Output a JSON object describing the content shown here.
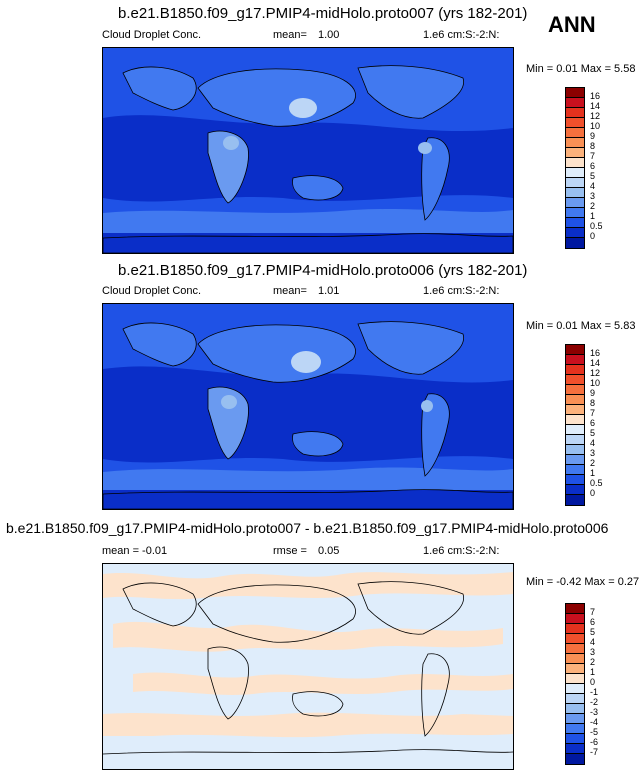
{
  "corner_label": "ANN",
  "panels": [
    {
      "title": "b.e21.B1850.f09_g17.PMIP4-midHolo.proto007 (yrs 182-201)",
      "left_label": "Cloud Droplet Conc.",
      "mean_label": "mean=",
      "mean_value": "1.00",
      "units": "1.e6 cm:S:-2:N:",
      "minmax": "Min =  0.01  Max =  5.58",
      "colorbar_labels": [
        "16",
        "14",
        "12",
        "10",
        "9",
        "8",
        "7",
        "6",
        "5",
        "4",
        "3",
        "2",
        "1",
        "0.5",
        "0"
      ],
      "colorbar_colors": [
        "#8b0000",
        "#c8101e",
        "#e4321e",
        "#f0502c",
        "#f5703e",
        "#f99055",
        "#fcb27c",
        "#fde3cc",
        "#dfedfb",
        "#bcd6f6",
        "#98bff0",
        "#6a9af0",
        "#4179f0",
        "#1f52e6",
        "#0a2ec8",
        "#0018a0"
      ]
    },
    {
      "title": "b.e21.B1850.f09_g17.PMIP4-midHolo.proto006 (yrs 182-201)",
      "left_label": "Cloud Droplet Conc.",
      "mean_label": "mean=",
      "mean_value": "1.01",
      "units": "1.e6 cm:S:-2:N:",
      "minmax": "Min =  0.01  Max =  5.83",
      "colorbar_labels": [
        "16",
        "14",
        "12",
        "10",
        "9",
        "8",
        "7",
        "6",
        "5",
        "4",
        "3",
        "2",
        "1",
        "0.5",
        "0"
      ],
      "colorbar_colors": [
        "#8b0000",
        "#c8101e",
        "#e4321e",
        "#f0502c",
        "#f5703e",
        "#f99055",
        "#fcb27c",
        "#fde3cc",
        "#dfedfb",
        "#bcd6f6",
        "#98bff0",
        "#6a9af0",
        "#4179f0",
        "#1f52e6",
        "#0a2ec8",
        "#0018a0"
      ]
    },
    {
      "title": "b.e21.B1850.f09_g17.PMIP4-midHolo.proto007 - b.e21.B1850.f09_g17.PMIP4-midHolo.proto006",
      "left_label": "mean =  -0.01",
      "mean_label": "rmse =",
      "mean_value": "0.05",
      "units": "1.e6 cm:S:-2:N:",
      "minmax": "Min =  -0.42  Max =  0.27",
      "colorbar_labels": [
        "7",
        "6",
        "5",
        "4",
        "3",
        "2",
        "1",
        "0",
        "-1",
        "-2",
        "-3",
        "-4",
        "-5",
        "-6",
        "-7"
      ],
      "colorbar_colors": [
        "#8b0000",
        "#c8101e",
        "#e4321e",
        "#f0502c",
        "#f5703e",
        "#f99055",
        "#fcb27c",
        "#fde3cc",
        "#dfedfb",
        "#bcd6f6",
        "#98bff0",
        "#6a9af0",
        "#4179f0",
        "#1f52e6",
        "#0a2ec8",
        "#0018a0"
      ]
    }
  ]
}
